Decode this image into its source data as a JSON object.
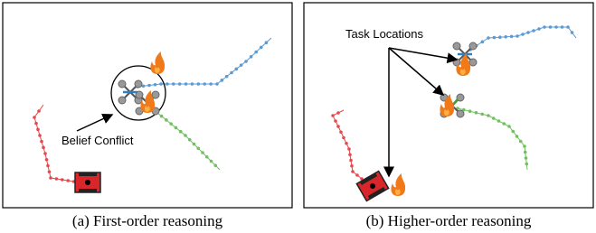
{
  "panels": [
    {
      "annotation": "Belief Conflict",
      "caption": "(a) First-order reasoning"
    },
    {
      "annotation": "Task Locations",
      "caption": "(b) Higher-order reasoning"
    }
  ]
}
